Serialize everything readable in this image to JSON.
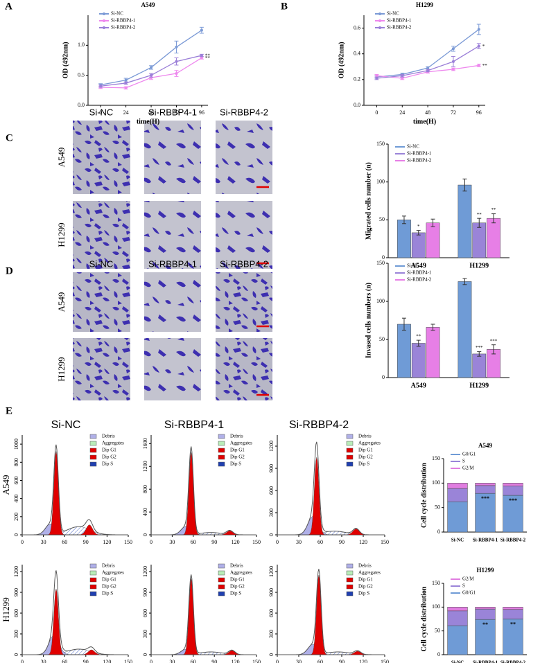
{
  "chart_data": [
    {
      "type": "line",
      "panel": "A",
      "title": "A549",
      "xlabel": "time(H)",
      "ylabel": "OD (492nm)",
      "x": [
        0,
        24,
        48,
        72,
        96
      ],
      "xlim": [
        -12,
        102
      ],
      "xticks": [
        0,
        24,
        48,
        72,
        96
      ],
      "ylim": [
        0,
        1.5
      ],
      "yticks": [
        {
          "value": 0,
          "label": "0.0"
        },
        0.5,
        {
          "value": 1,
          "label": "1.0"
        }
      ],
      "series": [
        {
          "name": "Si-NC",
          "color": "#7b9ad6",
          "values": [
            0.34,
            0.42,
            0.63,
            0.97,
            1.25
          ],
          "errors": [
            0.02,
            0.03,
            0.03,
            0.1,
            0.05
          ],
          "stars": [
            null,
            null,
            null,
            null,
            null
          ]
        },
        {
          "name": "Si-RBBP4-1",
          "color": "#ee88ee",
          "values": [
            0.3,
            0.29,
            0.46,
            0.53,
            0.79
          ],
          "errors": [
            0.02,
            0.02,
            0.03,
            0.05,
            0.02
          ],
          "stars": [
            null,
            null,
            null,
            null,
            "**"
          ]
        },
        {
          "name": "Si-RBBP4-2",
          "color": "#9b7fd8",
          "values": [
            0.32,
            0.37,
            0.5,
            0.73,
            0.83
          ],
          "errors": [
            0.02,
            0.02,
            0.03,
            0.06,
            0.02
          ],
          "stars": [
            null,
            null,
            null,
            null,
            "**"
          ]
        }
      ]
    },
    {
      "type": "line",
      "panel": "B",
      "title": "H1299",
      "xlabel": "time(H)",
      "ylabel": "OD (492nm)",
      "x": [
        0,
        24,
        48,
        72,
        96
      ],
      "xlim": [
        -12,
        102
      ],
      "xticks": [
        0,
        24,
        48,
        72,
        96
      ],
      "ylim": [
        0,
        0.7
      ],
      "yticks": [
        {
          "value": 0,
          "label": "0.0"
        },
        0.2,
        0.4,
        0.6
      ],
      "series": [
        {
          "name": "Si-NC",
          "color": "#7b9ad6",
          "values": [
            0.22,
            0.24,
            0.29,
            0.44,
            0.59
          ],
          "errors": [
            0.01,
            0.01,
            0.01,
            0.02,
            0.04
          ],
          "stars": [
            null,
            null,
            null,
            null,
            null
          ]
        },
        {
          "name": "Si-RBBP4-1",
          "color": "#ee88ee",
          "values": [
            0.23,
            0.21,
            0.26,
            0.28,
            0.31
          ],
          "errors": [
            0.01,
            0.01,
            0.01,
            0.01,
            0.01
          ],
          "stars": [
            null,
            null,
            null,
            null,
            "**"
          ]
        },
        {
          "name": "Si-RBBP4-2",
          "color": "#9b7fd8",
          "values": [
            0.21,
            0.23,
            0.27,
            0.34,
            0.46
          ],
          "errors": [
            0.01,
            0.01,
            0.01,
            0.04,
            0.02
          ],
          "stars": [
            null,
            null,
            null,
            null,
            "*"
          ]
        }
      ]
    },
    {
      "type": "bar",
      "ylabel": "Migrated cells number (n)",
      "categories": [
        "A549",
        "H1299"
      ],
      "ylim": [
        0,
        150
      ],
      "yticks": [
        0,
        50,
        100,
        150
      ],
      "series": [
        {
          "name": "Si-NC",
          "color": "#6f9bd6",
          "values": [
            50,
            96
          ],
          "errors": [
            5,
            8
          ],
          "stars": [
            null,
            null
          ]
        },
        {
          "name": "Si-RBBP4-1",
          "color": "#9a84d8",
          "values": [
            33,
            46
          ],
          "errors": [
            3,
            6
          ],
          "stars": [
            "*",
            "**"
          ]
        },
        {
          "name": "Si-RBBP4-2",
          "color": "#e77fe6",
          "values": [
            46,
            52
          ],
          "errors": [
            5,
            6
          ],
          "stars": [
            null,
            "**"
          ]
        }
      ]
    },
    {
      "type": "bar",
      "ylabel": "Invased cells numbers (n)",
      "categories": [
        "A549",
        "H1299"
      ],
      "ylim": [
        0,
        150
      ],
      "yticks": [
        0,
        50,
        100,
        150
      ],
      "series": [
        {
          "name": "Si-NC",
          "color": "#6f9bd6",
          "values": [
            70,
            126
          ],
          "errors": [
            8,
            4
          ],
          "stars": [
            null,
            null
          ]
        },
        {
          "name": "Si-RBBP4-1",
          "color": "#9a84d8",
          "values": [
            45,
            31
          ],
          "errors": [
            4,
            3
          ],
          "stars": [
            "**",
            "***"
          ]
        },
        {
          "name": "Si-RBBP4-2",
          "color": "#e77fe6",
          "values": [
            66,
            37
          ],
          "errors": [
            4,
            6
          ],
          "stars": [
            null,
            "***"
          ]
        }
      ]
    },
    {
      "type": "stacked",
      "title": "A549",
      "ylabel": "Cell cycle distribution",
      "categories": [
        "Si-NC",
        "Si-RBBP4-1",
        "Si-RBBP4-2"
      ],
      "ylim": [
        0,
        150
      ],
      "yticks": [
        0,
        50,
        100,
        150
      ],
      "legend_reversed": false,
      "series": [
        {
          "name": "G0/G1",
          "color": "#6f9bd6",
          "values": [
            62,
            79,
            75
          ],
          "stars": [
            null,
            "***",
            "***"
          ]
        },
        {
          "name": "S",
          "color": "#9a84d8",
          "values": [
            27,
            16,
            19
          ]
        },
        {
          "name": "G2/M",
          "color": "#e07de0",
          "values": [
            11,
            5,
            6
          ]
        }
      ]
    },
    {
      "type": "stacked",
      "title": "H1299",
      "ylabel": "Cell cycle distribution",
      "categories": [
        "Si-NC",
        "Si-RBBP4-1",
        "Si-RBBP4-2"
      ],
      "ylim": [
        0,
        150
      ],
      "yticks": [
        0,
        50,
        100,
        150
      ],
      "legend_reversed": true,
      "series": [
        {
          "name": "G0/G1",
          "color": "#6f9bd6",
          "values": [
            61,
            74,
            75
          ],
          "stars": [
            null,
            "**",
            "**"
          ]
        },
        {
          "name": "S",
          "color": "#9a84d8",
          "values": [
            31,
            22,
            20
          ]
        },
        {
          "name": "G2/M",
          "color": "#e07de0",
          "values": [
            8,
            4,
            5
          ]
        }
      ]
    },
    {
      "type": "flow",
      "xlim": [
        0,
        150
      ],
      "xticks": [
        0,
        30,
        60,
        90,
        120,
        150
      ],
      "ylim": [
        0,
        1100
      ],
      "yticks": [
        0,
        200,
        400,
        600,
        800,
        1000
      ],
      "series": [
        {
          "name": "Debris",
          "color": "#b0b0e8",
          "peak": [
            40,
            120
          ]
        },
        {
          "name": "Aggregates",
          "color": "#b8ecb8"
        },
        {
          "name": "Dip G1",
          "color": "#e00000",
          "peak": [
            48,
            920
          ]
        },
        {
          "name": "Dip G2",
          "color": "#e00000",
          "peak": [
            95,
            110
          ]
        },
        {
          "name": "Dip S",
          "color": "#2040b0",
          "peak": [
            80,
            90
          ]
        }
      ]
    },
    {
      "type": "flow",
      "xlim": [
        0,
        150
      ],
      "xticks": [
        0,
        30,
        60,
        90,
        120,
        150
      ],
      "ylim": [
        0,
        1750
      ],
      "yticks": [
        0,
        400,
        800,
        1200,
        1600
      ],
      "series": [
        {
          "name": "Debris",
          "color": "#b0b0e8",
          "peak": [
            50,
            150
          ]
        },
        {
          "name": "Aggregates",
          "color": "#b8ecb8"
        },
        {
          "name": "Dip G1",
          "color": "#e00000",
          "peak": [
            57,
            1450
          ]
        },
        {
          "name": "Dip G2",
          "color": "#e00000",
          "peak": [
            112,
            70
          ]
        },
        {
          "name": "Dip S",
          "color": "#2040b0",
          "peak": [
            85,
            40
          ]
        }
      ]
    },
    {
      "type": "flow",
      "xlim": [
        0,
        150
      ],
      "xticks": [
        0,
        30,
        60,
        90,
        120,
        150
      ],
      "ylim": [
        0,
        1350
      ],
      "yticks": [
        0,
        300,
        600,
        900,
        1200
      ],
      "series": [
        {
          "name": "Debris",
          "color": "#b0b0e8",
          "peak": [
            50,
            250
          ]
        },
        {
          "name": "Aggregates",
          "color": "#b8ecb8"
        },
        {
          "name": "Dip G1",
          "color": "#e00000",
          "peak": [
            55,
            1050
          ]
        },
        {
          "name": "Dip G2",
          "color": "#e00000",
          "peak": [
            110,
            80
          ]
        },
        {
          "name": "Dip S",
          "color": "#2040b0",
          "peak": [
            80,
            50
          ]
        }
      ]
    },
    {
      "type": "flow",
      "xlim": [
        0,
        150
      ],
      "xticks": [
        0,
        30,
        60,
        90,
        120,
        150
      ],
      "ylim": [
        0,
        1300
      ],
      "yticks": [
        0,
        300,
        600,
        900,
        1200
      ],
      "series": [
        {
          "name": "Debris",
          "color": "#b0b0e8",
          "peak": [
            45,
            280
          ]
        },
        {
          "name": "Aggregates",
          "color": "#b8ecb8"
        },
        {
          "name": "Dip G1",
          "color": "#e00000",
          "peak": [
            48,
            950
          ]
        },
        {
          "name": "Dip G2",
          "color": "#e00000",
          "peak": [
            98,
            70
          ]
        },
        {
          "name": "Dip S",
          "color": "#2040b0",
          "peak": [
            80,
            80
          ]
        }
      ]
    },
    {
      "type": "flow",
      "xlim": [
        0,
        150
      ],
      "xticks": [
        0,
        30,
        60,
        90,
        120,
        150
      ],
      "ylim": [
        0,
        1300
      ],
      "yticks": [
        0,
        300,
        600,
        900,
        1200
      ],
      "series": [
        {
          "name": "Debris",
          "color": "#b0b0e8",
          "peak": [
            50,
            80
          ]
        },
        {
          "name": "Aggregates",
          "color": "#b8ecb8"
        },
        {
          "name": "Dip G1",
          "color": "#e00000",
          "peak": [
            57,
            1100
          ]
        },
        {
          "name": "Dip G2",
          "color": "#e00000",
          "peak": [
            115,
            60
          ]
        },
        {
          "name": "Dip S",
          "color": "#2040b0",
          "peak": [
            85,
            40
          ]
        }
      ]
    },
    {
      "type": "flow",
      "xlim": [
        0,
        150
      ],
      "xticks": [
        0,
        30,
        60,
        90,
        120,
        150
      ],
      "ylim": [
        0,
        1300
      ],
      "yticks": [
        0,
        300,
        600,
        900,
        1200
      ],
      "series": [
        {
          "name": "Debris",
          "color": "#b0b0e8",
          "peak": [
            50,
            150
          ]
        },
        {
          "name": "Aggregates",
          "color": "#b8ecb8"
        },
        {
          "name": "Dip G1",
          "color": "#e00000",
          "peak": [
            58,
            1150
          ]
        },
        {
          "name": "Dip G2",
          "color": "#e00000",
          "peak": [
            112,
            50
          ]
        },
        {
          "name": "Dip S",
          "color": "#2040b0",
          "peak": [
            85,
            40
          ]
        }
      ]
    }
  ],
  "figure": {
    "C": {
      "letter": "C",
      "columns": [
        "Si-NC",
        "Si-RBBP4-1",
        "Si-RBBP4-2"
      ],
      "rows": [
        "A549",
        "H1299"
      ]
    },
    "D": {
      "letter": "D",
      "columns": [
        "Si-NC",
        "Si-RBBP4-1",
        "Si-RBBP4-2"
      ],
      "rows": [
        "A549",
        "H1299"
      ]
    },
    "E": {
      "letter": "E",
      "columns": [
        "Si-NC",
        "Si-RBBP4-1",
        "Si-RBBP4-2"
      ],
      "rows": [
        "A549",
        "H1299"
      ]
    }
  }
}
